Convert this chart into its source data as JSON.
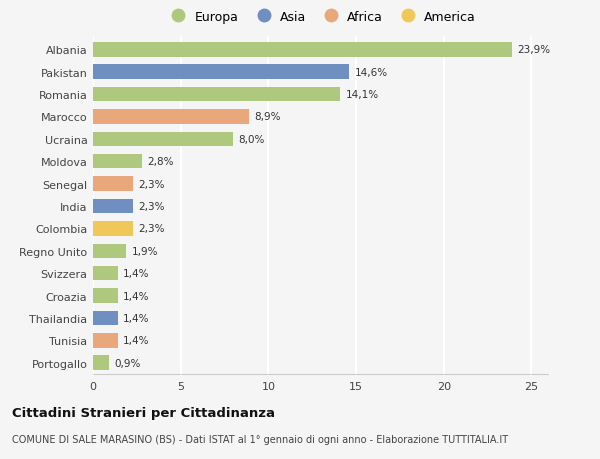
{
  "countries": [
    "Albania",
    "Pakistan",
    "Romania",
    "Marocco",
    "Ucraina",
    "Moldova",
    "Senegal",
    "India",
    "Colombia",
    "Regno Unito",
    "Svizzera",
    "Croazia",
    "Thailandia",
    "Tunisia",
    "Portogallo"
  ],
  "values": [
    23.9,
    14.6,
    14.1,
    8.9,
    8.0,
    2.8,
    2.3,
    2.3,
    2.3,
    1.9,
    1.4,
    1.4,
    1.4,
    1.4,
    0.9
  ],
  "labels": [
    "23,9%",
    "14,6%",
    "14,1%",
    "8,9%",
    "8,0%",
    "2,8%",
    "2,3%",
    "2,3%",
    "2,3%",
    "1,9%",
    "1,4%",
    "1,4%",
    "1,4%",
    "1,4%",
    "0,9%"
  ],
  "continents": [
    "Europa",
    "Asia",
    "Europa",
    "Africa",
    "Europa",
    "Europa",
    "Africa",
    "Asia",
    "America",
    "Europa",
    "Europa",
    "Europa",
    "Asia",
    "Africa",
    "Europa"
  ],
  "colors": {
    "Europa": "#aec97e",
    "Asia": "#6e8fc0",
    "Africa": "#e8a87c",
    "America": "#f0c85a"
  },
  "xlim": [
    0,
    26
  ],
  "xticks": [
    0,
    5,
    10,
    15,
    20,
    25
  ],
  "title": "Cittadini Stranieri per Cittadinanza",
  "subtitle": "COMUNE DI SALE MARASINO (BS) - Dati ISTAT al 1° gennaio di ogni anno - Elaborazione TUTTITALIA.IT",
  "background_color": "#f5f5f5",
  "grid_color": "#ffffff",
  "bar_height": 0.65,
  "legend_order": [
    "Europa",
    "Asia",
    "Africa",
    "America"
  ]
}
